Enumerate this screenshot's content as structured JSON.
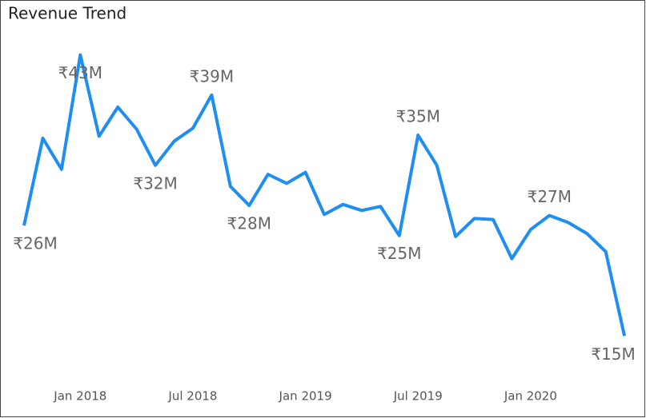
{
  "chart_data": {
    "type": "line",
    "title": "Revenue Trend",
    "categories": [
      null,
      null,
      null,
      "Jan 2018",
      null,
      null,
      null,
      null,
      null,
      "Jul 2018",
      null,
      null,
      null,
      null,
      null,
      "Jan 2019",
      null,
      null,
      null,
      null,
      null,
      "Jul 2019",
      null,
      null,
      null,
      null,
      null,
      "Jan 2020",
      null,
      null,
      null,
      null,
      null
    ],
    "series": [
      {
        "name": "Revenue",
        "color": "#1f8ef1",
        "values": [
          26,
          34.7,
          31.6,
          43,
          34.9,
          37.8,
          35.6,
          32,
          34.4,
          35.7,
          39,
          29.9,
          28,
          31.1,
          30.2,
          31.3,
          27.1,
          28.1,
          27.5,
          27.9,
          25,
          35,
          32,
          24.9,
          26.7,
          26.6,
          22.7,
          25.6,
          27,
          26.3,
          25.2,
          23.4,
          15
        ],
        "value_labels": [
          "₹26M",
          null,
          null,
          "₹43M",
          null,
          null,
          null,
          "₹32M",
          null,
          null,
          "₹39M",
          null,
          "₹28M",
          null,
          null,
          null,
          null,
          null,
          null,
          null,
          "₹25M",
          "₹35M",
          null,
          null,
          null,
          null,
          null,
          null,
          "₹27M",
          null,
          null,
          null,
          "₹15M"
        ]
      }
    ],
    "ylim": [
      12,
      46
    ]
  }
}
